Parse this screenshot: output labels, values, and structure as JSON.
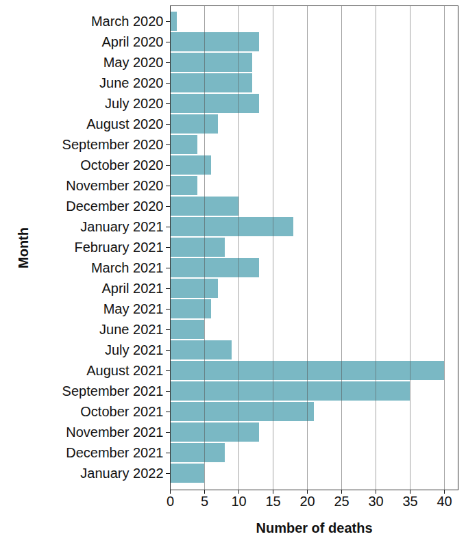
{
  "chart_data": {
    "type": "bar",
    "orientation": "horizontal",
    "x_label": "Number of deaths",
    "y_label": "Month",
    "categories": [
      "March 2020",
      "April 2020",
      "May 2020",
      "June 2020",
      "July 2020",
      "August 2020",
      "September 2020",
      "October 2020",
      "November 2020",
      "December 2020",
      "January 2021",
      "February 2021",
      "March 2021",
      "April 2021",
      "May 2021",
      "June 2021",
      "July 2021",
      "August 2021",
      "September 2021",
      "October 2021",
      "November 2021",
      "December 2021",
      "January 2022"
    ],
    "values": [
      1,
      13,
      12,
      12,
      13,
      7,
      4,
      6,
      4,
      10,
      18,
      8,
      13,
      7,
      6,
      5,
      9,
      40,
      35,
      21,
      13,
      8,
      5
    ],
    "color": "#7ab8c4",
    "xlim": [
      0,
      42
    ],
    "xticks": [
      0,
      5,
      10,
      15,
      20,
      25,
      30,
      35,
      40
    ],
    "grid": true
  }
}
